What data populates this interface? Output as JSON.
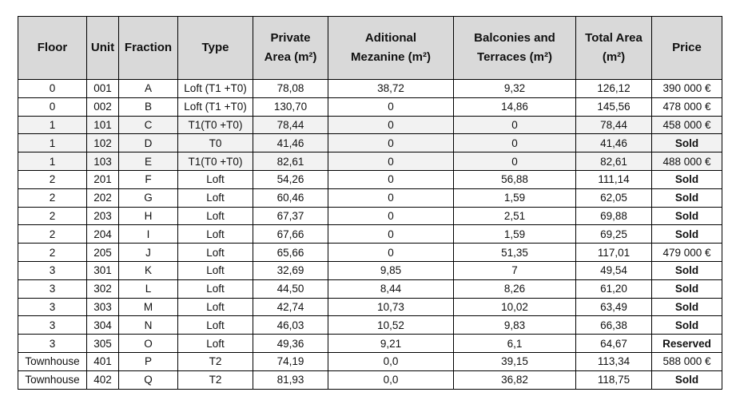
{
  "table": {
    "header": [
      [
        "Floor"
      ],
      [
        "Unit"
      ],
      [
        "Fraction"
      ],
      [
        "Type"
      ],
      [
        "Private",
        "Area (m²)"
      ],
      [
        "Aditional",
        "Mezanine (m²)"
      ],
      [
        "Balconies and",
        "Terraces (m²)"
      ],
      [
        "Total Area",
        "(m²)"
      ],
      [
        "Price"
      ]
    ],
    "rows": [
      [
        "0",
        "001",
        "A",
        "Loft (T1 +T0)",
        "78,08",
        "38,72",
        "9,32",
        "126,12",
        "390 000 €"
      ],
      [
        "0",
        "002",
        "B",
        "Loft (T1 +T0)",
        "130,70",
        "0",
        "14,86",
        "145,56",
        "478 000 €"
      ],
      [
        "1",
        "101",
        "C",
        "T1(T0 +T0)",
        "78,44",
        "0",
        "0",
        "78,44",
        "458 000 €"
      ],
      [
        "1",
        "102",
        "D",
        "T0",
        "41,46",
        "0",
        "0",
        "41,46",
        "Sold"
      ],
      [
        "1",
        "103",
        "E",
        "T1(T0 +T0)",
        "82,61",
        "0",
        "0",
        "82,61",
        "488 000 €"
      ],
      [
        "2",
        "201",
        "F",
        "Loft",
        "54,26",
        "0",
        "56,88",
        "111,14",
        "Sold"
      ],
      [
        "2",
        "202",
        "G",
        "Loft",
        "60,46",
        "0",
        "1,59",
        "62,05",
        "Sold"
      ],
      [
        "2",
        "203",
        "H",
        "Loft",
        "67,37",
        "0",
        "2,51",
        "69,88",
        "Sold"
      ],
      [
        "2",
        "204",
        "I",
        "Loft",
        "67,66",
        "0",
        "1,59",
        "69,25",
        "Sold"
      ],
      [
        "2",
        "205",
        "J",
        "Loft",
        "65,66",
        "0",
        "51,35",
        "117,01",
        "479 000 €"
      ],
      [
        "3",
        "301",
        "K",
        "Loft",
        "32,69",
        "9,85",
        "7",
        "49,54",
        "Sold"
      ],
      [
        "3",
        "302",
        "L",
        "Loft",
        "44,50",
        "8,44",
        "8,26",
        "61,20",
        "Sold"
      ],
      [
        "3",
        "303",
        "M",
        "Loft",
        "42,74",
        "10,73",
        "10,02",
        "63,49",
        "Sold"
      ],
      [
        "3",
        "304",
        "N",
        "Loft",
        "46,03",
        "10,52",
        "9,83",
        "66,38",
        "Sold"
      ],
      [
        "3",
        "305",
        "O",
        "Loft",
        "49,36",
        "9,21",
        "6,1",
        "64,67",
        "Reserved"
      ],
      [
        "Townhouse",
        "401",
        "P",
        "T2",
        "74,19",
        "0,0",
        "39,15",
        "113,34",
        "588 000 €"
      ],
      [
        "Townhouse",
        "402",
        "Q",
        "T2",
        "81,93",
        "0,0",
        "36,82",
        "118,75",
        "Sold"
      ]
    ]
  }
}
